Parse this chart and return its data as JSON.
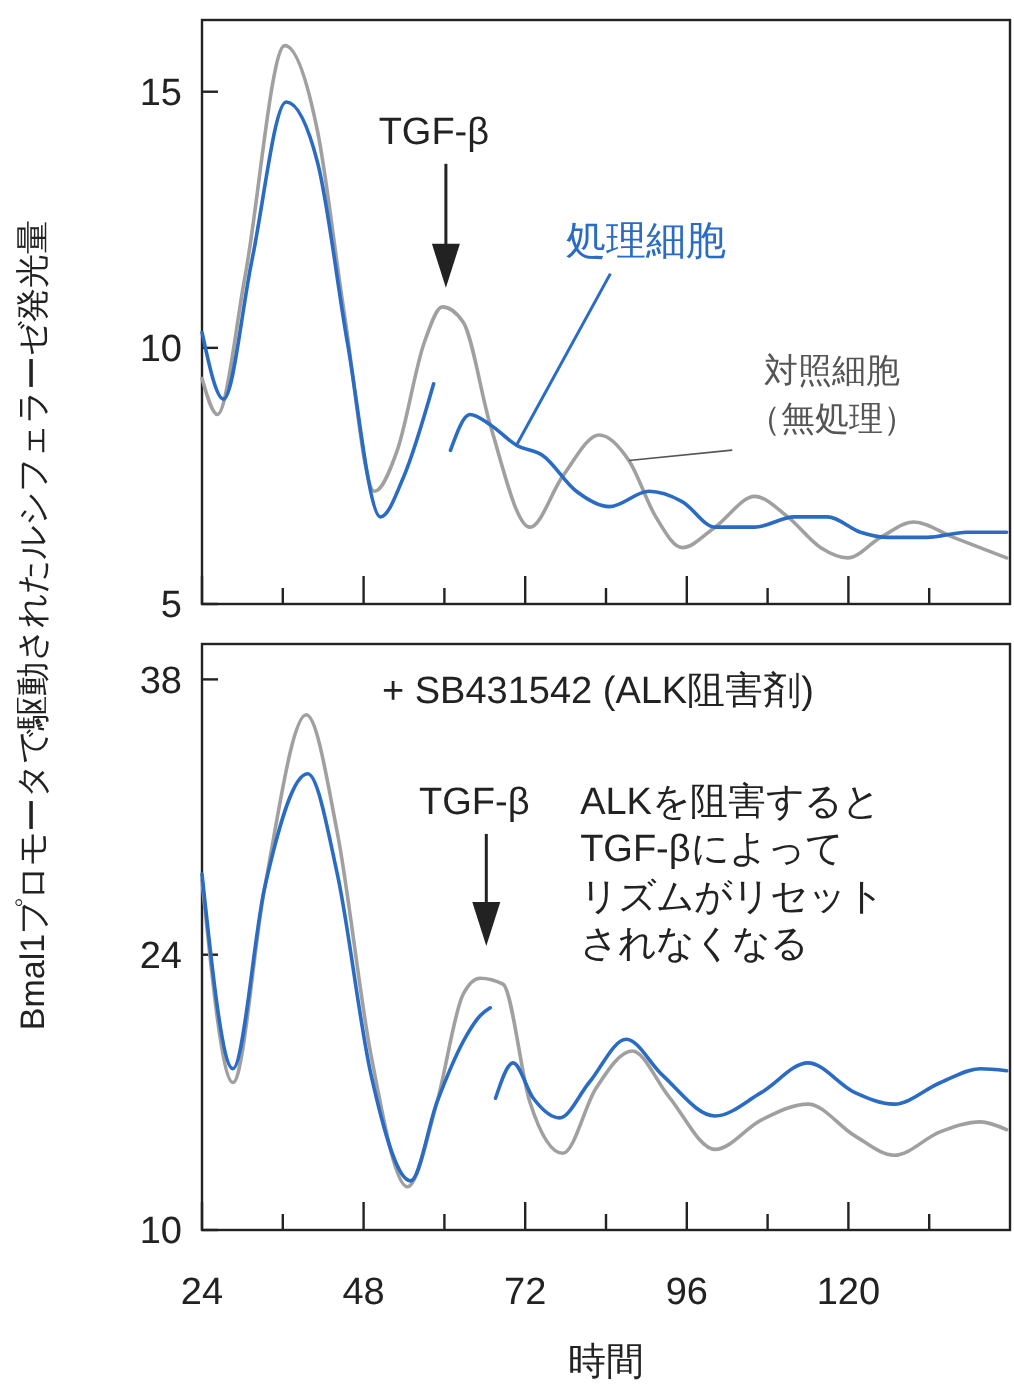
{
  "chart_data": [
    {
      "type": "line",
      "ylabel": "Bmal1プロモータで駆動されたルシフェラーゼ発光量",
      "xlim": [
        24,
        144
      ],
      "ylim": [
        5,
        16.4
      ],
      "yticks": [
        5,
        10,
        15
      ],
      "tick_labels": "y",
      "line_style": "solid",
      "xticks": [
        24,
        {
          "value": 36,
          "label": null
        },
        48,
        {
          "value": 60,
          "label": null
        },
        72,
        {
          "value": 84,
          "label": null
        },
        96,
        {
          "value": 108,
          "label": null
        },
        120,
        {
          "value": 132,
          "label": null
        }
      ],
      "annotations": [
        "TGF-β"
      ],
      "series": [
        {
          "name": "対照細胞（無処理）",
          "color": "#a0a0a0",
          "x": [
            24,
            26.3,
            30.4,
            36.3,
            41.2,
            45.1,
            49.6,
            53,
            57,
            59.7,
            62.8,
            66.8,
            72.7,
            77.6,
            83,
            87.4,
            91.4,
            95.3,
            100.2,
            106.1,
            111,
            115.9,
            119.9,
            124.8,
            129.7,
            135.6,
            143.5
          ],
          "values": [
            9.4,
            8.7,
            11.4,
            15.9,
            14.2,
            10.7,
            7.2,
            8.0,
            10.1,
            10.8,
            10.5,
            8.5,
            6.5,
            7.5,
            8.3,
            7.8,
            6.7,
            6.1,
            6.5,
            7.1,
            6.7,
            6.1,
            5.9,
            6.3,
            6.6,
            6.3,
            5.9
          ]
        },
        {
          "name": "処理細胞",
          "color": "#2a6bc4",
          "x": [
            24,
            27.2,
            31.4,
            36.5,
            41.2,
            45.6,
            50.5,
            54,
            58.4,
            59.2,
            60.9,
            63.8,
            66.8,
            70.7,
            74.6,
            79.6,
            84.5,
            90.4,
            95.3,
            100.2,
            106.1,
            112,
            116.9,
            121.8,
            125.8,
            131.7,
            137.6,
            143.5
          ],
          "values": [
            10.3,
            9.0,
            11.7,
            14.8,
            13.6,
            10.1,
            6.7,
            7.5,
            9.3,
            null,
            8.0,
            8.7,
            8.5,
            8.1,
            7.9,
            7.2,
            6.9,
            7.2,
            7.0,
            6.5,
            6.5,
            6.7,
            6.7,
            6.4,
            6.3,
            6.3,
            6.4,
            6.4
          ]
        }
      ]
    },
    {
      "type": "line",
      "xlabel": "時間",
      "xlim": [
        24,
        144
      ],
      "ylim": [
        10,
        39.8
      ],
      "yticks": [
        10,
        24,
        38
      ],
      "line_style": "solid",
      "xticks": [
        24,
        {
          "value": 36,
          "label": null
        },
        48,
        {
          "value": 60,
          "label": null
        },
        72,
        {
          "value": 84,
          "label": null
        },
        96,
        {
          "value": 108,
          "label": null
        },
        120,
        {
          "value": 132,
          "label": null
        }
      ],
      "annotations": [
        "+ SB431542 (ALK阻害剤)",
        "ALKを阻害するとTGF-βによってリズムがリセットされなくなる",
        "TGF-β"
      ],
      "series": [
        {
          "color": "#a0a0a0",
          "x": [
            24,
            28.6,
            33.3,
            39.5,
            44.1,
            49.1,
            54.5,
            58.9,
            62.8,
            65.3,
            68.7,
            72.7,
            77.6,
            82.5,
            87.9,
            93.3,
            100.2,
            107.1,
            114,
            120.9,
            126.8,
            133.7,
            139.6,
            143.5
          ],
          "values": [
            27.8,
            17.5,
            27.4,
            36.2,
            30.2,
            18.9,
            12.2,
            16.5,
            22.0,
            22.8,
            22.5,
            16.5,
            13.9,
            17.2,
            19.1,
            16.8,
            14.1,
            15.6,
            16.4,
            14.8,
            13.8,
            15.0,
            15.5,
            15.1
          ]
        },
        {
          "color": "#2a6bc4",
          "x": [
            24,
            28.6,
            33.3,
            39.7,
            44.1,
            49.1,
            55,
            58.9,
            63.3,
            65.3,
            66.8,
            67.2,
            67.6,
            70.2,
            73.2,
            77.1,
            81.5,
            87,
            92.3,
            100.2,
            107.1,
            114,
            120.9,
            126.8,
            133.7,
            139.6,
            143.5
          ],
          "values": [
            28.1,
            18.2,
            27.4,
            33.2,
            28.1,
            17.9,
            12.5,
            16.5,
            19.9,
            20.9,
            21.3,
            null,
            16.7,
            18.5,
            16.7,
            15.7,
            17.5,
            19.7,
            17.9,
            15.8,
            17.0,
            18.5,
            17.0,
            16.4,
            17.5,
            18.2,
            18.1
          ]
        }
      ]
    }
  ]
}
